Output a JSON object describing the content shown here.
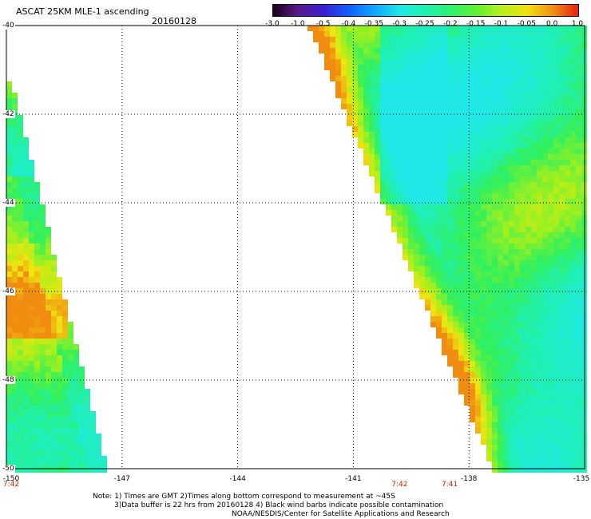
{
  "header": {
    "title": "ASCAT 25KM MLE-1 ascending",
    "date": "20160128"
  },
  "colorbar": {
    "labels": [
      "-3.0",
      "-1.0",
      "-0.5",
      "-0.4",
      "-0.35",
      "-0.3",
      "-0.25",
      "-0.2",
      "-0.15",
      "-0.1",
      "-0.05",
      "0.0",
      "1.0"
    ],
    "colors": [
      "#1a001a",
      "#5a1a8a",
      "#3a1fd4",
      "#1060ff",
      "#10a8ff",
      "#20e8e8",
      "#20f0b0",
      "#30f070",
      "#60f030",
      "#b8f020",
      "#f0e010",
      "#f09010",
      "#e82010"
    ]
  },
  "map": {
    "lat_labels": [
      "-40",
      "-42",
      "-44",
      "-46",
      "-48",
      "-50"
    ],
    "lon_labels": [
      "-150",
      "-147",
      "-144",
      "-141",
      "-138",
      "-135"
    ],
    "time_labels": [
      {
        "text": "7:42",
        "lon": -150.0
      },
      {
        "text": "7:42",
        "lon": -139.8
      },
      {
        "text": "7:41",
        "lon": -138.5
      }
    ],
    "lat_range": [
      -50,
      -40
    ],
    "lon_range": [
      -150,
      -135
    ],
    "grid": true
  },
  "footer": {
    "note_line1": "Note: 1) Times are GMT 2)Times along bottom correspond to measurement at ~45S",
    "note_line2": "3)Data buffer is 22 hrs from 20160128 4) Black wind barbs indicate possible contamination",
    "credit": "NOAA/NESDIS/Center for Satellite Applications and Research"
  }
}
